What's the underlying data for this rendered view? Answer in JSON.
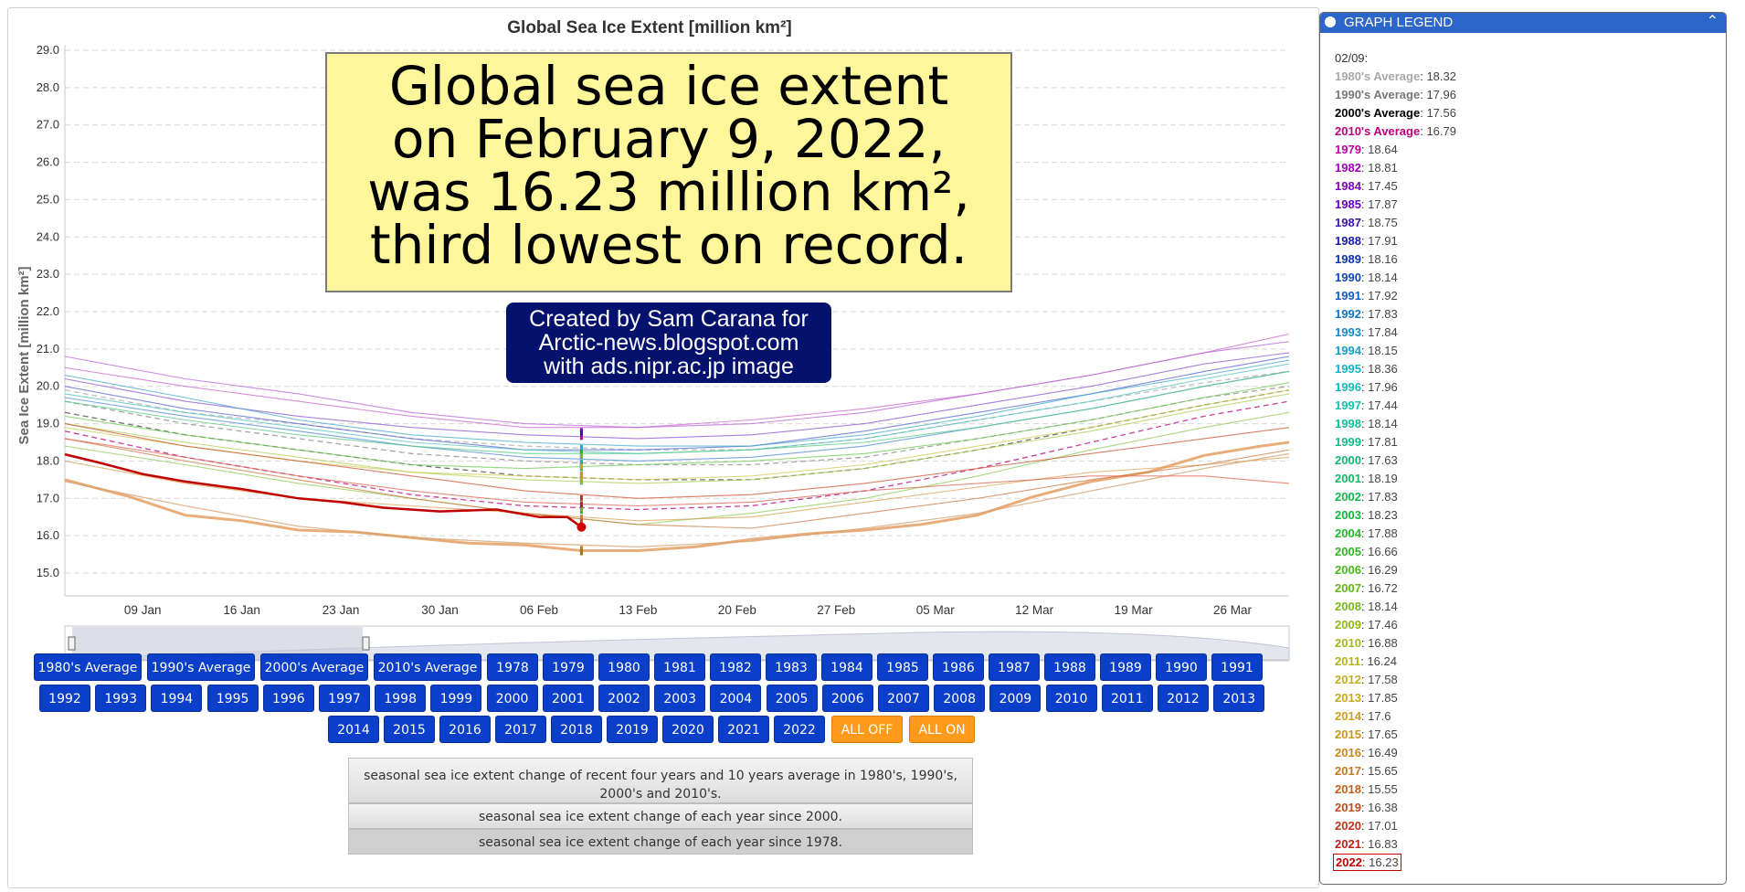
{
  "chart_data": {
    "type": "line",
    "title": "Global Sea Ice Extent [million km²]",
    "ylabel": "Sea Ice Extent [million km²]",
    "xlabel": "",
    "ylim": [
      15.0,
      29.0
    ],
    "yticks": [
      "29.0",
      "28.0",
      "27.0",
      "26.0",
      "25.0",
      "24.0",
      "23.0",
      "22.0",
      "21.0",
      "20.0",
      "19.0",
      "18.0",
      "17.0",
      "16.0",
      "15.0"
    ],
    "xticks": [
      "09 Jan",
      "16 Jan",
      "23 Jan",
      "30 Jan",
      "06 Feb",
      "13 Feb",
      "20 Feb",
      "27 Feb",
      "05 Mar",
      "12 Mar",
      "19 Mar",
      "26 Mar"
    ],
    "xtick_days": [
      9,
      16,
      23,
      30,
      37,
      44,
      51,
      58,
      65,
      72,
      79,
      86
    ],
    "xlim_days": [
      3.5,
      90
    ],
    "grid": true,
    "current_day": 40,
    "series": [
      {
        "name": "2022",
        "color": "#c00000",
        "width": 2.5,
        "days": [
          3.5,
          6,
          9,
          12,
          16,
          20,
          23,
          26,
          30,
          34,
          37,
          39,
          40
        ],
        "values": [
          18.18,
          17.95,
          17.65,
          17.45,
          17.25,
          17.0,
          16.9,
          16.75,
          16.65,
          16.7,
          16.5,
          16.5,
          16.23
        ]
      },
      {
        "name": "2018",
        "color": "#e8ad7a",
        "width": 3,
        "days": [
          3.5,
          8,
          12,
          16,
          20,
          24,
          28,
          32,
          36,
          40,
          44,
          48,
          52,
          56,
          60,
          64,
          68,
          72,
          76,
          80,
          84,
          88,
          90
        ],
        "values": [
          17.5,
          17.05,
          16.55,
          16.4,
          16.15,
          16.1,
          15.95,
          15.8,
          15.75,
          15.6,
          15.6,
          15.7,
          15.9,
          16.05,
          16.15,
          16.3,
          16.55,
          17.05,
          17.45,
          17.7,
          18.15,
          18.4,
          18.5
        ]
      },
      {
        "name": "2017",
        "color": "#d4a06e",
        "width": 1.3,
        "days": [
          3.5,
          12,
          20,
          28,
          36,
          44,
          52,
          60,
          68,
          76,
          84,
          90
        ],
        "values": [
          17.45,
          16.8,
          16.25,
          15.95,
          15.8,
          15.7,
          15.85,
          16.2,
          16.6,
          17.2,
          17.8,
          18.2
        ]
      },
      {
        "name": "1980's Average",
        "color": "#aaaaaa",
        "width": 1.3,
        "dash": true,
        "days": [
          3.5,
          12,
          20,
          28,
          36,
          44,
          52,
          60,
          68,
          76,
          84,
          90
        ],
        "values": [
          19.9,
          19.3,
          19.0,
          18.6,
          18.4,
          18.3,
          18.3,
          18.6,
          19.1,
          19.6,
          20.1,
          20.4
        ]
      },
      {
        "name": "1990's Average",
        "color": "#888888",
        "width": 1.3,
        "dash": true,
        "days": [
          3.5,
          12,
          20,
          28,
          36,
          44,
          52,
          60,
          68,
          76,
          84,
          90
        ],
        "values": [
          19.6,
          19.0,
          18.6,
          18.2,
          18.0,
          17.9,
          17.9,
          18.1,
          18.6,
          19.1,
          19.7,
          20.0
        ]
      },
      {
        "name": "2000's Average",
        "color": "#444444",
        "width": 1.3,
        "dash": true,
        "days": [
          3.5,
          12,
          20,
          28,
          36,
          44,
          52,
          60,
          68,
          76,
          84,
          90
        ],
        "values": [
          19.3,
          18.7,
          18.3,
          17.9,
          17.6,
          17.5,
          17.5,
          17.8,
          18.3,
          18.9,
          19.5,
          19.9
        ]
      },
      {
        "name": "2010's Average",
        "color": "#b3007b",
        "width": 1.3,
        "dash": true,
        "days": [
          3.5,
          12,
          20,
          28,
          36,
          44,
          52,
          60,
          68,
          76,
          84,
          90
        ],
        "values": [
          18.8,
          18.1,
          17.6,
          17.1,
          16.8,
          16.7,
          16.8,
          17.2,
          17.8,
          18.5,
          19.2,
          19.6
        ]
      },
      {
        "name": "1979",
        "color": "#cc66cc",
        "width": 1.1,
        "days": [
          3.5,
          12,
          20,
          28,
          36,
          44,
          52,
          60,
          68,
          76,
          84,
          90
        ],
        "values": [
          20.5,
          20.0,
          19.6,
          19.2,
          18.9,
          18.9,
          19.1,
          19.4,
          19.8,
          20.3,
          20.9,
          21.4
        ]
      },
      {
        "name": "1982",
        "color": "#b866d8",
        "width": 1.1,
        "days": [
          3.5,
          12,
          20,
          28,
          36,
          44,
          52,
          60,
          68,
          76,
          84,
          90
        ],
        "values": [
          20.8,
          20.2,
          19.8,
          19.3,
          19.0,
          18.9,
          19.0,
          19.3,
          19.8,
          20.3,
          20.9,
          21.2
        ]
      },
      {
        "name": "1985",
        "color": "#8a55d0",
        "width": 1.1,
        "days": [
          3.5,
          12,
          20,
          28,
          36,
          44,
          52,
          60,
          68,
          76,
          84,
          90
        ],
        "values": [
          20.2,
          19.6,
          19.2,
          18.9,
          18.7,
          18.6,
          18.7,
          19.0,
          19.5,
          20.0,
          20.6,
          20.9
        ]
      },
      {
        "name": "1988",
        "color": "#5566d0",
        "width": 1.1,
        "days": [
          3.5,
          12,
          20,
          28,
          36,
          44,
          52,
          60,
          68,
          76,
          84,
          90
        ],
        "values": [
          20.0,
          19.4,
          19.0,
          18.6,
          18.3,
          18.3,
          18.4,
          18.8,
          19.3,
          19.8,
          20.4,
          20.8
        ]
      },
      {
        "name": "1992",
        "color": "#4d88d8",
        "width": 1.1,
        "days": [
          3.5,
          12,
          20,
          28,
          36,
          44,
          52,
          60,
          68,
          76,
          84,
          90
        ],
        "values": [
          19.7,
          19.2,
          18.8,
          18.4,
          18.1,
          18.0,
          18.1,
          18.4,
          18.9,
          19.4,
          20.0,
          20.4
        ]
      },
      {
        "name": "1995",
        "color": "#44aacc",
        "width": 1.1,
        "days": [
          3.5,
          12,
          20,
          28,
          36,
          44,
          52,
          60,
          68,
          76,
          84,
          90
        ],
        "values": [
          20.3,
          19.7,
          19.1,
          18.7,
          18.5,
          18.4,
          18.4,
          18.7,
          19.2,
          19.8,
          20.3,
          20.7
        ]
      },
      {
        "name": "1998",
        "color": "#55c2c2",
        "width": 1.1,
        "days": [
          3.5,
          12,
          20,
          28,
          36,
          44,
          52,
          60,
          68,
          76,
          84,
          90
        ],
        "values": [
          19.8,
          19.3,
          18.9,
          18.5,
          18.3,
          18.2,
          18.3,
          18.6,
          19.1,
          19.6,
          20.2,
          20.6
        ]
      },
      {
        "name": "2001",
        "color": "#55c88a",
        "width": 1.1,
        "days": [
          3.5,
          12,
          20,
          28,
          36,
          44,
          52,
          60,
          68,
          76,
          84,
          90
        ],
        "values": [
          19.6,
          19.1,
          18.7,
          18.4,
          18.2,
          18.2,
          18.3,
          18.5,
          18.9,
          19.4,
          20.0,
          20.4
        ]
      },
      {
        "name": "2004",
        "color": "#6ccc55",
        "width": 1.1,
        "days": [
          3.5,
          12,
          20,
          28,
          36,
          44,
          52,
          60,
          68,
          76,
          84,
          90
        ],
        "values": [
          19.2,
          18.7,
          18.3,
          17.9,
          17.8,
          17.9,
          18.0,
          18.2,
          18.6,
          19.1,
          19.7,
          20.1
        ]
      },
      {
        "name": "2006",
        "color": "#8ccc55",
        "width": 1.1,
        "days": [
          3.5,
          12,
          20,
          28,
          36,
          44,
          52,
          60,
          68,
          76,
          84,
          90
        ],
        "values": [
          18.4,
          17.9,
          17.4,
          17.0,
          16.6,
          16.3,
          16.6,
          17.0,
          17.6,
          18.3,
          18.9,
          19.3
        ]
      },
      {
        "name": "2009",
        "color": "#b0cc55",
        "width": 1.1,
        "days": [
          3.5,
          12,
          20,
          28,
          36,
          44,
          52,
          60,
          68,
          76,
          84,
          90
        ],
        "values": [
          19.0,
          18.5,
          18.1,
          17.7,
          17.5,
          17.4,
          17.5,
          17.8,
          18.3,
          18.8,
          19.4,
          19.8
        ]
      },
      {
        "name": "2012",
        "color": "#d0cc55",
        "width": 1.1,
        "days": [
          3.5,
          12,
          20,
          28,
          36,
          44,
          52,
          60,
          68,
          76,
          84,
          90
        ],
        "values": [
          18.9,
          18.4,
          18.0,
          17.7,
          17.6,
          17.5,
          17.6,
          17.9,
          18.4,
          18.9,
          19.5,
          19.9
        ]
      },
      {
        "name": "2016",
        "color": "#dda055",
        "width": 1.1,
        "days": [
          3.5,
          12,
          20,
          28,
          36,
          44,
          52,
          60,
          68,
          76,
          84,
          90
        ],
        "values": [
          18.0,
          17.4,
          17.0,
          16.8,
          16.6,
          16.4,
          16.5,
          16.9,
          17.3,
          17.7,
          17.9,
          18.1
        ]
      },
      {
        "name": "2019",
        "color": "#cc7a44",
        "width": 1.1,
        "days": [
          3.5,
          12,
          20,
          28,
          36,
          44,
          52,
          60,
          68,
          76,
          84,
          90
        ],
        "values": [
          18.6,
          18.0,
          17.5,
          17.0,
          16.6,
          16.3,
          16.2,
          16.6,
          17.0,
          17.5,
          17.9,
          18.3
        ]
      },
      {
        "name": "2020",
        "color": "#cc5533",
        "width": 1.1,
        "days": [
          3.5,
          12,
          20,
          28,
          36,
          44,
          52,
          60,
          68,
          76,
          84,
          90
        ],
        "values": [
          19.0,
          18.4,
          18.0,
          17.6,
          17.2,
          17.0,
          17.1,
          17.4,
          17.8,
          18.2,
          18.6,
          18.9
        ]
      },
      {
        "name": "2021",
        "color": "#dd6655",
        "width": 1.1,
        "days": [
          3.5,
          12,
          20,
          28,
          36,
          44,
          52,
          60,
          68,
          76,
          84,
          90
        ],
        "values": [
          18.6,
          18.1,
          17.6,
          17.2,
          16.9,
          16.8,
          16.9,
          17.2,
          17.4,
          17.6,
          17.6,
          17.4
        ]
      }
    ]
  },
  "overlay": {
    "lines": [
      "Global sea ice extent",
      "on February 9, 2022,",
      "was 16.23 million km²,",
      "third lowest on record."
    ],
    "credit": [
      "Created by Sam Carana for",
      "Arctic-news.blogspot.com",
      "with ads.nipr.ac.jp image"
    ]
  },
  "buttons": [
    "1980's Average",
    "1990's Average",
    "2000's Average",
    "2010's Average",
    "1978",
    "1979",
    "1980",
    "1981",
    "1982",
    "1983",
    "1984",
    "1985",
    "1986",
    "1987",
    "1988",
    "1989",
    "1990",
    "1991",
    "1992",
    "1993",
    "1994",
    "1995",
    "1996",
    "1997",
    "1998",
    "1999",
    "2000",
    "2001",
    "2002",
    "2003",
    "2004",
    "2005",
    "2006",
    "2007",
    "2008",
    "2009",
    "2010",
    "2011",
    "2012",
    "2013",
    "2014",
    "2015",
    "2016",
    "2017",
    "2018",
    "2019",
    "2020",
    "2021",
    "2022"
  ],
  "all_off": "ALL OFF",
  "all_on": "ALL ON",
  "info_buttons": [
    "seasonal sea ice extent change of recent four years and 10 years average in 1980's, 1990's, 2000's and 2010's.",
    "seasonal sea ice extent change of each year since 2000.",
    "seasonal sea ice extent change of each year since 1978."
  ],
  "legend": {
    "title": "GRAPH LEGEND",
    "date": "02/09:",
    "items": [
      {
        "name": "1980's Average",
        "value": "18.32",
        "color": "#a8a8a8"
      },
      {
        "name": "1990's Average",
        "value": "17.96",
        "color": "#777777"
      },
      {
        "name": "2000's Average",
        "value": "17.56",
        "color": "#000000"
      },
      {
        "name": "2010's Average",
        "value": "16.79",
        "color": "#c0007a"
      },
      {
        "name": "1979",
        "value": "18.64",
        "color": "#c000a0"
      },
      {
        "name": "1982",
        "value": "18.81",
        "color": "#a000b8"
      },
      {
        "name": "1984",
        "value": "17.45",
        "color": "#8000c0"
      },
      {
        "name": "1985",
        "value": "17.87",
        "color": "#6a00c0"
      },
      {
        "name": "1987",
        "value": "18.75",
        "color": "#3a10b0"
      },
      {
        "name": "1988",
        "value": "17.91",
        "color": "#1a1aa8"
      },
      {
        "name": "1989",
        "value": "18.16",
        "color": "#1030b0"
      },
      {
        "name": "1990",
        "value": "18.14",
        "color": "#1046b8"
      },
      {
        "name": "1991",
        "value": "17.92",
        "color": "#105cc0"
      },
      {
        "name": "1992",
        "value": "17.83",
        "color": "#1074c4"
      },
      {
        "name": "1993",
        "value": "17.84",
        "color": "#108ac8"
      },
      {
        "name": "1994",
        "value": "18.15",
        "color": "#10a0c8"
      },
      {
        "name": "1995",
        "value": "18.36",
        "color": "#10b4c8"
      },
      {
        "name": "1996",
        "value": "17.96",
        "color": "#10bcbc"
      },
      {
        "name": "1997",
        "value": "17.44",
        "color": "#10c0ac"
      },
      {
        "name": "1998",
        "value": "18.14",
        "color": "#10c09a"
      },
      {
        "name": "1999",
        "value": "17.81",
        "color": "#10bc86"
      },
      {
        "name": "2000",
        "value": "17.63",
        "color": "#10b872"
      },
      {
        "name": "2001",
        "value": "18.19",
        "color": "#10b860"
      },
      {
        "name": "2002",
        "value": "17.83",
        "color": "#10b84c"
      },
      {
        "name": "2003",
        "value": "18.23",
        "color": "#10b83a"
      },
      {
        "name": "2004",
        "value": "17.88",
        "color": "#20b82a"
      },
      {
        "name": "2005",
        "value": "16.66",
        "color": "#30b820"
      },
      {
        "name": "2006",
        "value": "16.29",
        "color": "#48b818"
      },
      {
        "name": "2007",
        "value": "16.72",
        "color": "#60b818"
      },
      {
        "name": "2008",
        "value": "18.14",
        "color": "#78b818"
      },
      {
        "name": "2009",
        "value": "17.46",
        "color": "#90b818"
      },
      {
        "name": "2010",
        "value": "16.88",
        "color": "#a4b818"
      },
      {
        "name": "2011",
        "value": "16.24",
        "color": "#b4b418"
      },
      {
        "name": "2012",
        "value": "17.58",
        "color": "#c0b018"
      },
      {
        "name": "2013",
        "value": "17.85",
        "color": "#c8a818"
      },
      {
        "name": "2014",
        "value": "17.6",
        "color": "#cca018"
      },
      {
        "name": "2015",
        "value": "17.65",
        "color": "#cc9418"
      },
      {
        "name": "2016",
        "value": "16.49",
        "color": "#cc8618"
      },
      {
        "name": "2017",
        "value": "15.65",
        "color": "#c87418"
      },
      {
        "name": "2018",
        "value": "15.55",
        "color": "#c46018"
      },
      {
        "name": "2019",
        "value": "16.38",
        "color": "#c04a18"
      },
      {
        "name": "2020",
        "value": "17.01",
        "color": "#bc3418"
      },
      {
        "name": "2021",
        "value": "16.83",
        "color": "#b82018"
      },
      {
        "name": "2022",
        "value": "16.23",
        "color": "#c00000"
      }
    ]
  }
}
